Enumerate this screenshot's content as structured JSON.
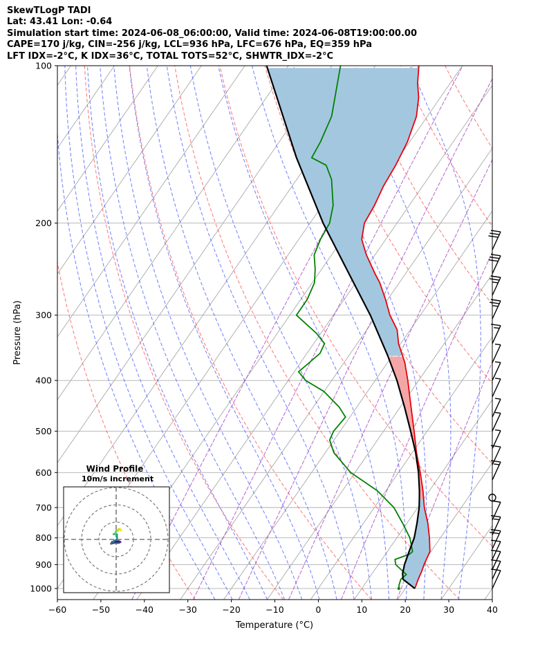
{
  "header": {
    "line1": "SkewTLogP TADI",
    "line2": "Lat: 43.41   Lon: -0.64",
    "line3": "Simulation start time: 2024-06-08_06:00:00, Valid time: 2024-06-08T19:00:00.00",
    "line4": "CAPE=170 j/kg, CIN=-256 j/kg, LCL=936 hPa, LFC=676 hPa, EQ=359 hPa",
    "line5": "LFT IDX=-2°C, K IDX=36°C, TOTAL TOTS=52°C, SHWTR_IDX=-2°C"
  },
  "chart_data": {
    "type": "line",
    "subtype": "skew-t log-p",
    "xlabel": "Temperature (°C)",
    "ylabel": "Pressure (hPa)",
    "xlim": [
      -60,
      40
    ],
    "ylim": [
      1050,
      100
    ],
    "yscale": "log",
    "xticks": [
      "−60",
      "−50",
      "−40",
      "−30",
      "−20",
      "−10",
      "0",
      "10",
      "20",
      "30",
      "40"
    ],
    "yticks": [
      "100",
      "200",
      "300",
      "400",
      "500",
      "600",
      "700",
      "800",
      "900",
      "1000"
    ],
    "grid": true,
    "series": [
      {
        "role": "temperature",
        "color": "#e8000b",
        "points": [
          [
            1000,
            22.2
          ],
          [
            960,
            21.5
          ],
          [
            925,
            21.0
          ],
          [
            900,
            20.5
          ],
          [
            850,
            19.8
          ],
          [
            800,
            17.5
          ],
          [
            750,
            14.8
          ],
          [
            700,
            11.5
          ],
          [
            650,
            8.5
          ],
          [
            600,
            5.0
          ],
          [
            550,
            1.0
          ],
          [
            500,
            -3.0
          ],
          [
            450,
            -7.5
          ],
          [
            400,
            -12.5
          ],
          [
            370,
            -16.0
          ],
          [
            359,
            -17.6
          ],
          [
            340,
            -20.5
          ],
          [
            320,
            -23.0
          ],
          [
            300,
            -27.0
          ],
          [
            280,
            -30.5
          ],
          [
            260,
            -34.5
          ],
          [
            250,
            -37.0
          ],
          [
            230,
            -42.0
          ],
          [
            215,
            -45.5
          ],
          [
            200,
            -47.5
          ],
          [
            185,
            -48.0
          ],
          [
            170,
            -49.0
          ],
          [
            155,
            -49.5
          ],
          [
            140,
            -50.5
          ],
          [
            125,
            -52.5
          ],
          [
            115,
            -55.0
          ],
          [
            108,
            -57.5
          ],
          [
            100,
            -60.0
          ]
        ]
      },
      {
        "role": "dewpoint",
        "color": "#008000",
        "points": [
          [
            1000,
            18.5
          ],
          [
            985,
            18.0
          ],
          [
            960,
            17.5
          ],
          [
            940,
            18.0
          ],
          [
            920,
            16.0
          ],
          [
            900,
            14.0
          ],
          [
            880,
            13.0
          ],
          [
            860,
            15.5
          ],
          [
            850,
            15.8
          ],
          [
            800,
            13.0
          ],
          [
            750,
            9.0
          ],
          [
            700,
            4.5
          ],
          [
            650,
            -2.0
          ],
          [
            600,
            -11.0
          ],
          [
            550,
            -18.0
          ],
          [
            520,
            -21.0
          ],
          [
            500,
            -21.5
          ],
          [
            470,
            -21.0
          ],
          [
            450,
            -24.0
          ],
          [
            420,
            -30.0
          ],
          [
            400,
            -36.0
          ],
          [
            385,
            -39.0
          ],
          [
            370,
            -38.0
          ],
          [
            355,
            -37.0
          ],
          [
            340,
            -37.5
          ],
          [
            325,
            -41.0
          ],
          [
            300,
            -48.5
          ],
          [
            280,
            -48.5
          ],
          [
            260,
            -49.5
          ],
          [
            245,
            -51.5
          ],
          [
            230,
            -54.0
          ],
          [
            215,
            -55.0
          ],
          [
            200,
            -55.5
          ],
          [
            185,
            -57.5
          ],
          [
            165,
            -62.0
          ],
          [
            155,
            -65.5
          ],
          [
            150,
            -70.0
          ],
          [
            140,
            -70.5
          ],
          [
            125,
            -72.0
          ],
          [
            100,
            -78.0
          ]
        ]
      },
      {
        "role": "parcel",
        "color": "#000000",
        "points": [
          [
            1000,
            22.2
          ],
          [
            960,
            18.0
          ],
          [
            936,
            17.0
          ],
          [
            900,
            16.0
          ],
          [
            850,
            15.0
          ],
          [
            800,
            14.0
          ],
          [
            750,
            12.3
          ],
          [
            700,
            10.3
          ],
          [
            676,
            9.1
          ],
          [
            650,
            7.7
          ],
          [
            600,
            4.6
          ],
          [
            550,
            0.8
          ],
          [
            500,
            -3.8
          ],
          [
            450,
            -9.0
          ],
          [
            400,
            -15.0
          ],
          [
            359,
            -21.0
          ],
          [
            300,
            -31.5
          ],
          [
            250,
            -43.0
          ],
          [
            200,
            -57.0
          ],
          [
            150,
            -73.5
          ],
          [
            100,
            -95.0
          ]
        ]
      }
    ],
    "shading": {
      "cape_color": "#f4a6a6",
      "cin_color": "#a4c7e0"
    },
    "wind_barbs": [
      {
        "p": 225,
        "speed": 30
      },
      {
        "p": 250,
        "speed": 30
      },
      {
        "p": 275,
        "speed": 25
      },
      {
        "p": 305,
        "speed": 25
      },
      {
        "p": 340,
        "speed": 15
      },
      {
        "p": 370,
        "speed": 5
      },
      {
        "p": 400,
        "speed": 5
      },
      {
        "p": 430,
        "speed": 5
      },
      {
        "p": 470,
        "speed": 5
      },
      {
        "p": 500,
        "speed": 5
      },
      {
        "p": 540,
        "speed": 5
      },
      {
        "p": 580,
        "speed": 10
      },
      {
        "p": 620,
        "speed": 15
      },
      {
        "p": 670,
        "speed": 0
      },
      {
        "p": 740,
        "speed": 10
      },
      {
        "p": 790,
        "speed": 15
      },
      {
        "p": 840,
        "speed": 20
      },
      {
        "p": 880,
        "speed": 10
      },
      {
        "p": 920,
        "speed": 10
      },
      {
        "p": 960,
        "speed": 10
      },
      {
        "p": 1000,
        "speed": 10
      }
    ],
    "hodograph": {
      "title": "Wind Profile",
      "subtitle": "10m/s increment",
      "ring_increment": 10,
      "points": [
        [
          -2.5,
          -1.5
        ],
        [
          -1.0,
          -1.5
        ],
        [
          1.5,
          -1.0
        ],
        [
          2.5,
          -1.5
        ],
        [
          1.5,
          -2.0
        ],
        [
          -1.0,
          -2.0
        ],
        [
          -3.0,
          -2.5
        ],
        [
          -2.0,
          -1.5
        ],
        [
          -1.5,
          -1.0
        ],
        [
          0.5,
          0.0
        ],
        [
          0.5,
          1.0
        ],
        [
          0.5,
          2.0
        ],
        [
          0.5,
          3.0
        ],
        [
          -1.5,
          3.0
        ],
        [
          -0.5,
          3.5
        ],
        [
          0.0,
          5.0
        ],
        [
          1.0,
          5.0
        ],
        [
          1.5,
          6.0
        ],
        [
          2.5,
          6.0
        ],
        [
          3.0,
          5.5
        ],
        [
          2.5,
          5.0
        ]
      ]
    }
  }
}
